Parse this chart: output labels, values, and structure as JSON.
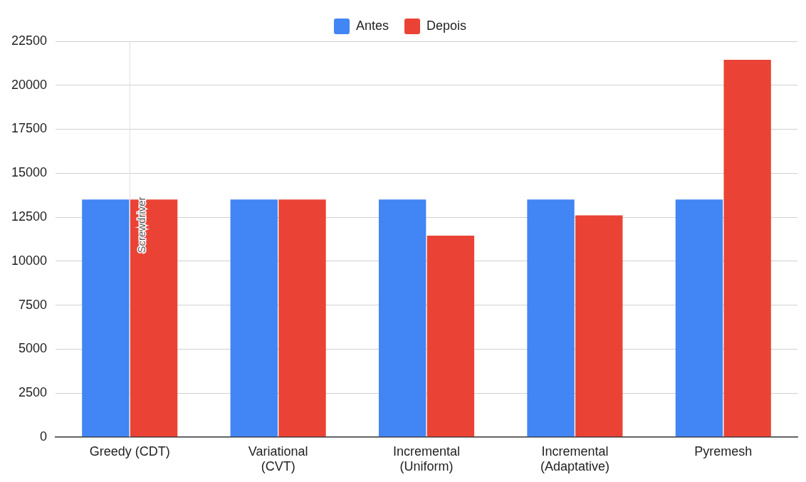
{
  "chart_data": {
    "type": "bar",
    "categories": [
      "Greedy (CDT)",
      "Variational (CVT)",
      "Incremental (Uniform)",
      "Incremental (Adaptative)",
      "Pyremesh"
    ],
    "series": [
      {
        "name": "Antes",
        "color": "#4285f4",
        "values": [
          13500,
          13500,
          13500,
          13500,
          13500
        ]
      },
      {
        "name": "Depois",
        "color": "#ea4335",
        "values": [
          13500,
          13500,
          11450,
          12600,
          21450
        ]
      }
    ],
    "ylim": [
      0,
      22500
    ],
    "yticks": [
      0,
      2500,
      5000,
      7500,
      10000,
      12500,
      15000,
      17500,
      20000,
      22500
    ],
    "grid": "y",
    "legend": "top",
    "ref_lines": [
      {
        "axis": "x",
        "value": "Greedy (CDT)",
        "label": "Screwdriver",
        "color": "#dddddd"
      }
    ]
  }
}
